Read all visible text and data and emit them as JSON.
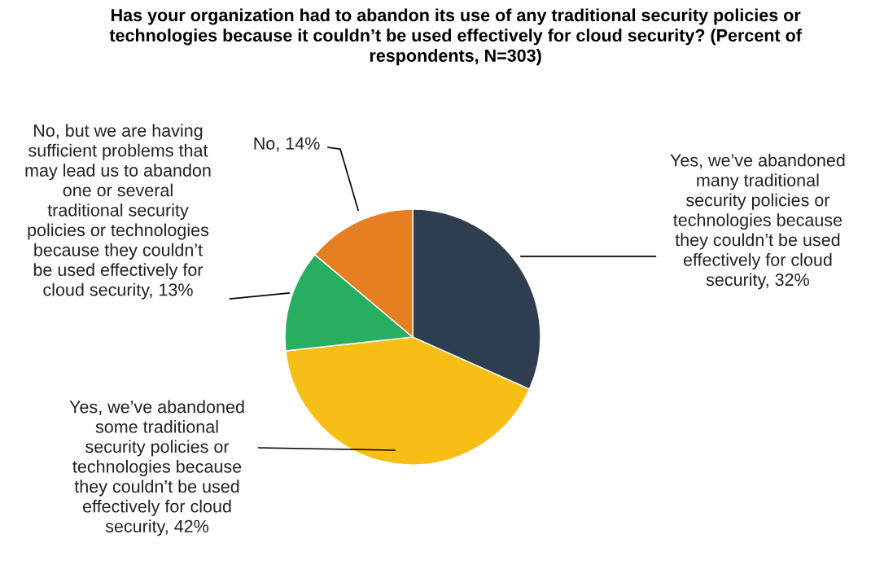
{
  "chart_data": {
    "type": "pie",
    "title": "Has your organization had to abandon its use of any traditional security policies or\ntechnologies because it couldn’t be used effectively for cloud security? (Percent of\nrespondents, N=303)",
    "categories": [
      "Yes, we’ve abandoned\nmany traditional\nsecurity policies or\ntechnologies because\nthey couldn’t be used\neffectively for cloud\nsecurity, 32%",
      "Yes, we’ve abandoned\nsome traditional\nsecurity policies or\ntechnologies because\nthey couldn’t be used\neffectively for cloud\nsecurity, 42%",
      "No, but we are having\nsufficient problems that\nmay lead us to abandon\none or several\ntraditional security\npolicies or technologies\nbecause they couldn’t\nbe used effectively for\ncloud security, 13%",
      "No, 14%"
    ],
    "values": [
      32,
      42,
      13,
      14
    ],
    "colors": [
      "#2e3d50",
      "#f7bf15",
      "#27ae60",
      "#e67e22"
    ]
  }
}
